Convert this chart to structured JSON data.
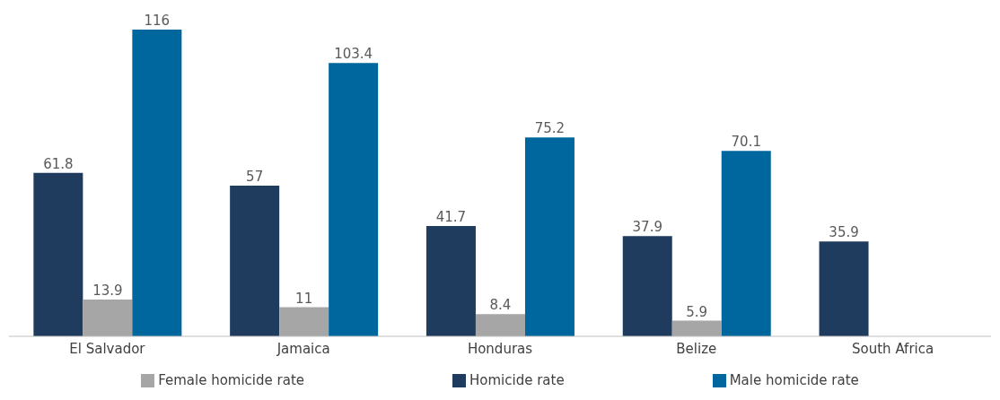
{
  "chart_data": {
    "type": "bar",
    "categories": [
      "El Salvador",
      "Jamaica",
      "Honduras",
      "Belize",
      "South Africa"
    ],
    "series": [
      {
        "name": "Homicide rate",
        "color": "#1f3b5e",
        "values": [
          61.8,
          57,
          41.7,
          37.9,
          35.9
        ]
      },
      {
        "name": "Female homicide rate",
        "color": "#a6a6a6",
        "values": [
          13.9,
          11,
          8.4,
          5.9,
          null
        ]
      },
      {
        "name": "Male homicide rate",
        "color": "#00679e",
        "values": [
          116,
          103.4,
          75.2,
          70.1,
          null
        ]
      }
    ],
    "data_labels": true,
    "legend": "bottom"
  }
}
